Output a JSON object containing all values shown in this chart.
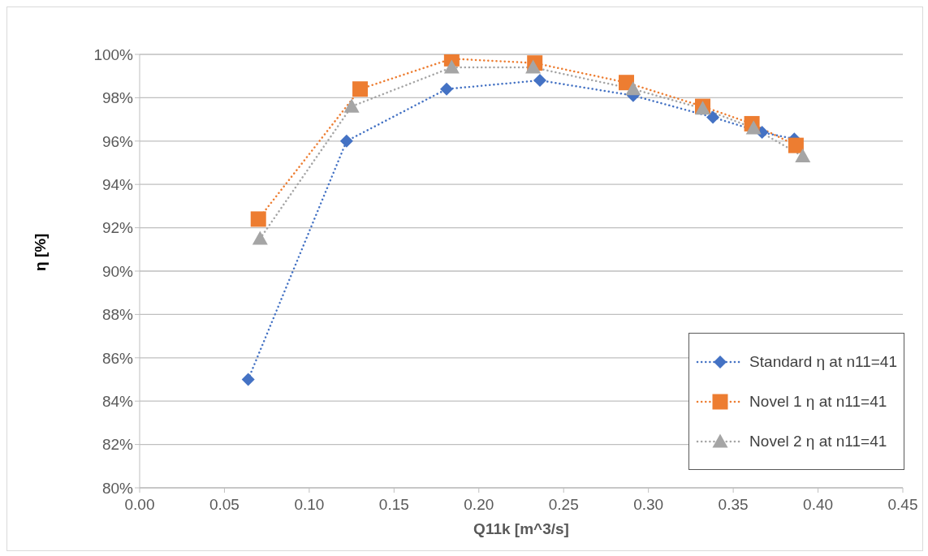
{
  "chart_data": {
    "type": "line",
    "xlabel": "Q11k  [m^3/s]",
    "ylabel": "η [%]",
    "xlim": [
      0,
      0.45
    ],
    "xticks": [
      {
        "value": 0,
        "label": "0.00"
      },
      {
        "value": 0.05,
        "label": "0.05"
      },
      {
        "value": 0.1,
        "label": "0.10"
      },
      {
        "value": 0.15,
        "label": "0.15"
      },
      {
        "value": 0.2,
        "label": "0.20"
      },
      {
        "value": 0.25,
        "label": "0.25"
      },
      {
        "value": 0.3,
        "label": "0.30"
      },
      {
        "value": 0.35,
        "label": "0.35"
      },
      {
        "value": 0.4,
        "label": "0.40"
      },
      {
        "value": 0.45,
        "label": "0.45"
      }
    ],
    "ylim": [
      80,
      100
    ],
    "yticks": [
      {
        "value": 80,
        "label": "80%"
      },
      {
        "value": 82,
        "label": "82%"
      },
      {
        "value": 84,
        "label": "84%"
      },
      {
        "value": 86,
        "label": "86%"
      },
      {
        "value": 88,
        "label": "88%"
      },
      {
        "value": 90,
        "label": "90%"
      },
      {
        "value": 92,
        "label": "92%"
      },
      {
        "value": 94,
        "label": "94%"
      },
      {
        "value": 96,
        "label": "96%"
      },
      {
        "value": 98,
        "label": "98%"
      },
      {
        "value": 100,
        "label": "100%"
      }
    ],
    "grid": "y",
    "legend": "bottom right",
    "line_style": "dotted",
    "series": [
      {
        "name": "Standard η at n11=41",
        "color": "#4472c4",
        "marker": "diamond",
        "x": [
          0.064,
          0.122,
          0.181,
          0.236,
          0.291,
          0.338,
          0.367,
          0.386
        ],
        "values": [
          85.0,
          96.0,
          98.4,
          98.8,
          98.1,
          97.1,
          96.4,
          96.1
        ]
      },
      {
        "name": "Novel 1 η at n11=41",
        "color": "#ed7d31",
        "marker": "square",
        "x": [
          0.07,
          0.13,
          0.184,
          0.233,
          0.287,
          0.332,
          0.361,
          0.387
        ],
        "values": [
          92.4,
          98.4,
          99.8,
          99.6,
          98.7,
          97.6,
          96.8,
          95.8
        ]
      },
      {
        "name": "Novel 2 η at n11=41",
        "color": "#a5a5a5",
        "marker": "triangle",
        "x": [
          0.071,
          0.125,
          0.184,
          0.232,
          0.291,
          0.332,
          0.362,
          0.391
        ],
        "values": [
          91.5,
          97.6,
          99.4,
          99.4,
          98.4,
          97.5,
          96.6,
          95.3
        ]
      }
    ]
  }
}
